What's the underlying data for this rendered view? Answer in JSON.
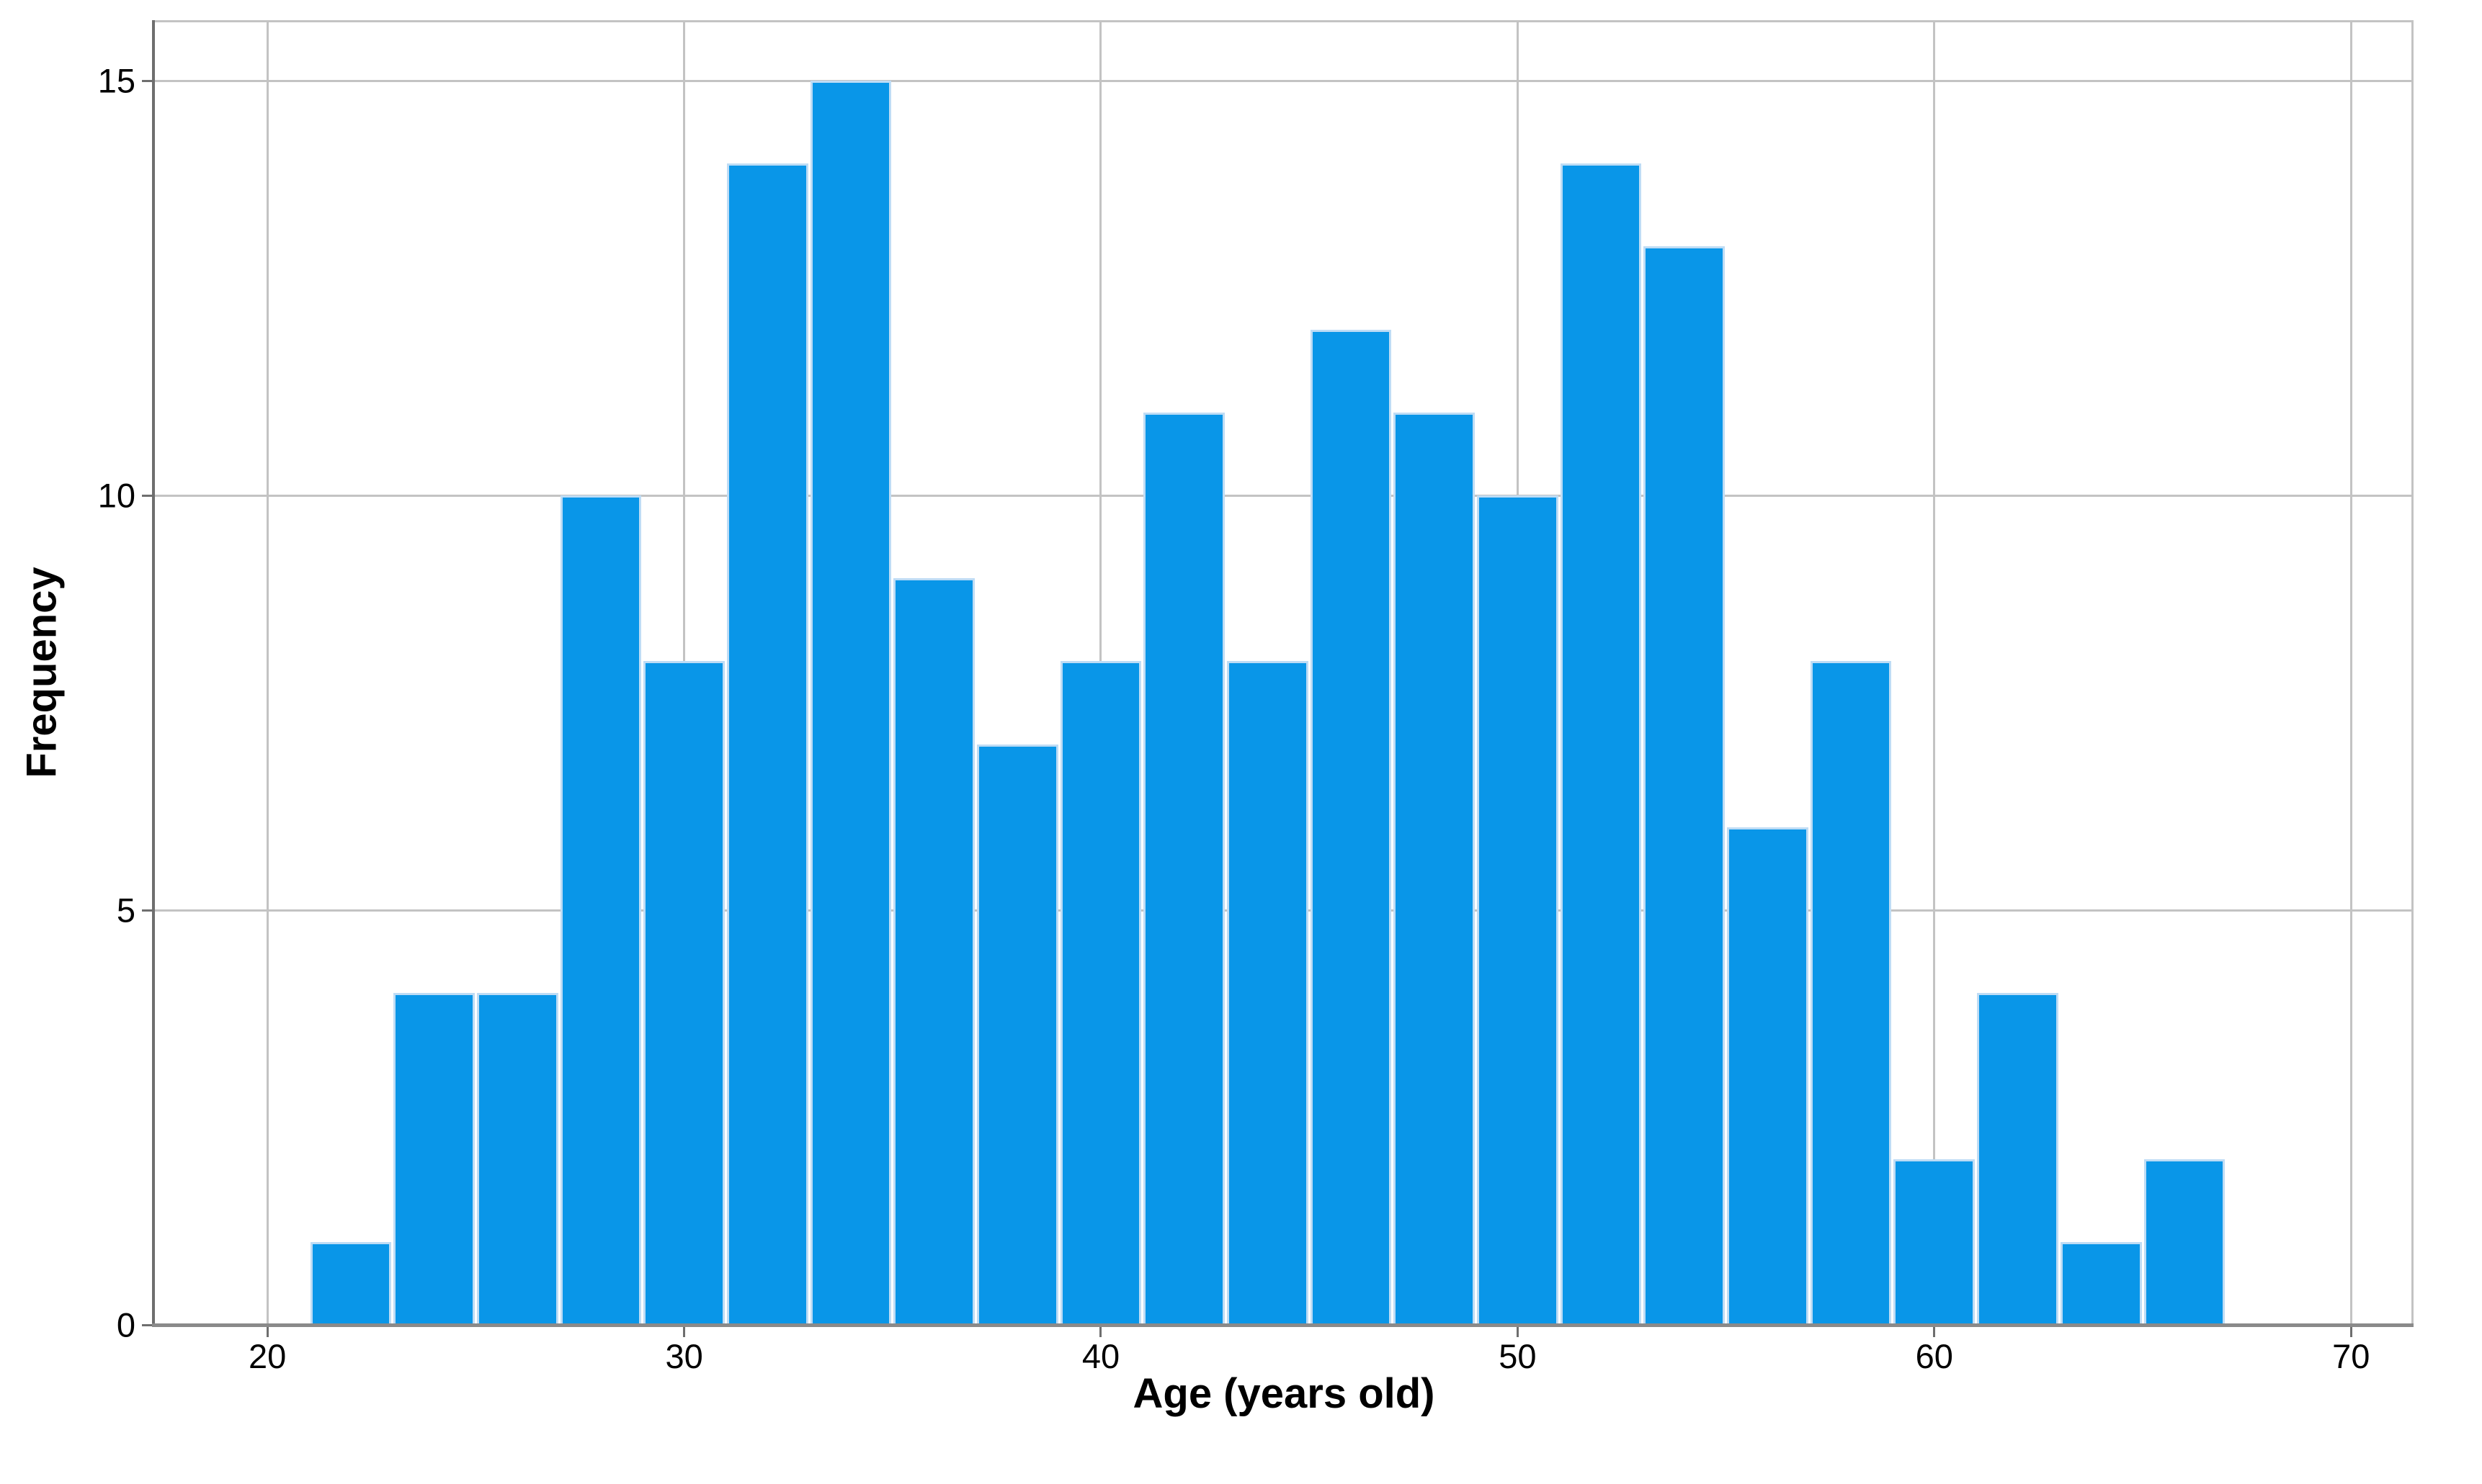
{
  "chart_data": {
    "type": "bar",
    "subtype": "histogram",
    "title": "",
    "xlabel": "Age (years old)",
    "ylabel": "Frequency",
    "x_ticks": [
      20,
      30,
      40,
      50,
      60,
      70
    ],
    "y_ticks": [
      0,
      5,
      10,
      15
    ],
    "xlim": [
      17.3,
      71.5
    ],
    "ylim": [
      0,
      15.73
    ],
    "bin_start": 21,
    "bin_width": 2,
    "bin_edges": [
      21,
      23,
      25,
      27,
      29,
      31,
      33,
      35,
      37,
      39,
      41,
      43,
      45,
      47,
      49,
      51,
      53,
      55,
      57,
      59,
      61,
      63,
      65,
      67
    ],
    "counts": [
      1,
      4,
      4,
      10,
      8,
      14,
      15,
      9,
      7,
      8,
      11,
      8,
      12,
      11,
      10,
      14,
      13,
      6,
      8,
      2,
      4,
      1,
      2
    ],
    "n_total": 182,
    "grid": true,
    "legend": "none",
    "colors": {
      "bar_fill": "#0996E8",
      "bar_border": "#BEDCF5",
      "gridline": "#C3C3C3",
      "axis_line": "#6E6E6E",
      "baseline": "#8A8A8A",
      "text": "#000000",
      "background": "#FFFFFF"
    }
  }
}
